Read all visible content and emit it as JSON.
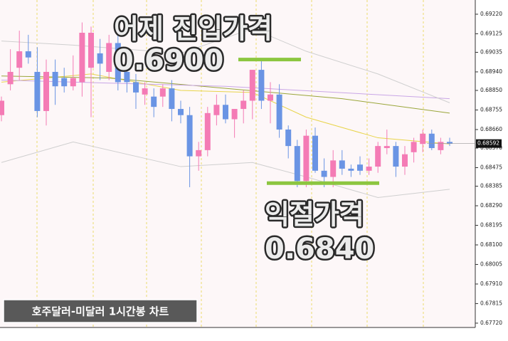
{
  "chart_data": {
    "type": "candlestick",
    "title": "호주달러-미달러 1시간봉 차트",
    "up_color": "#f47bb5",
    "down_color": "#6a94e4",
    "open": [
      0.6873,
      0.6888,
      0.6896,
      0.6904,
      0.6894,
      0.6875,
      0.6894,
      0.6891,
      0.6887,
      0.6889,
      0.6896,
      0.6903,
      0.6894,
      0.6908,
      0.6894,
      0.6889,
      0.6883,
      0.6882,
      0.6882,
      0.6886,
      0.6876,
      0.6873,
      0.6853,
      0.6856,
      0.6873,
      0.6878,
      0.6871,
      0.6876,
      0.688,
      0.6895,
      0.688,
      0.6883,
      0.6866,
      0.6858,
      0.6841,
      0.6863,
      0.6846,
      0.6843,
      0.6851,
      0.6847,
      0.6849,
      0.6846,
      0.6848,
      0.6857,
      0.6858,
      0.6848,
      0.6855,
      0.6859,
      0.6864,
      0.6856,
      0.686
    ],
    "high": [
      0.6882,
      0.6905,
      0.6914,
      0.6912,
      0.6906,
      0.69,
      0.69,
      0.6896,
      0.6902,
      0.6918,
      0.6916,
      0.691,
      0.6912,
      0.6915,
      0.6897,
      0.6893,
      0.6889,
      0.6886,
      0.6888,
      0.689,
      0.688,
      0.6877,
      0.686,
      0.6877,
      0.6883,
      0.6883,
      0.6876,
      0.6885,
      0.6895,
      0.69,
      0.6889,
      0.6888,
      0.6868,
      0.6861,
      0.6866,
      0.6867,
      0.6852,
      0.6856,
      0.6856,
      0.6849,
      0.6853,
      0.6852,
      0.686,
      0.6866,
      0.686,
      0.6858,
      0.6862,
      0.6866,
      0.6866,
      0.6862,
      0.6862
    ],
    "low": [
      0.687,
      0.6885,
      0.689,
      0.6898,
      0.6872,
      0.6868,
      0.6878,
      0.6884,
      0.6885,
      0.6882,
      0.6872,
      0.689,
      0.689,
      0.6885,
      0.6884,
      0.6876,
      0.6878,
      0.6872,
      0.6877,
      0.687,
      0.6869,
      0.6838,
      0.6846,
      0.6853,
      0.6868,
      0.6869,
      0.6862,
      0.6869,
      0.6871,
      0.6876,
      0.6869,
      0.6862,
      0.6852,
      0.6838,
      0.6838,
      0.6845,
      0.6838,
      0.6838,
      0.6844,
      0.6843,
      0.6844,
      0.6844,
      0.6845,
      0.6854,
      0.6843,
      0.6844,
      0.685,
      0.6855,
      0.6856,
      0.6854,
      0.6858
    ],
    "close": [
      0.688,
      0.6894,
      0.6904,
      0.6901,
      0.6875,
      0.6894,
      0.6887,
      0.6887,
      0.6891,
      0.6913,
      0.6913,
      0.6898,
      0.6908,
      0.6889,
      0.6889,
      0.6884,
      0.6886,
      0.6877,
      0.6886,
      0.6876,
      0.6873,
      0.6853,
      0.6856,
      0.6874,
      0.6878,
      0.6871,
      0.6876,
      0.688,
      0.6895,
      0.688,
      0.6883,
      0.6866,
      0.6858,
      0.6841,
      0.6863,
      0.6846,
      0.6843,
      0.6851,
      0.6847,
      0.6846,
      0.6846,
      0.6848,
      0.6858,
      0.6858,
      0.6848,
      0.6854,
      0.686,
      0.6864,
      0.6857,
      0.686,
      0.68592
    ],
    "overlays": [
      {
        "color": "#e8d44a",
        "x": [
          0,
          10,
          20,
          28,
          34,
          42,
          50
        ],
        "values": [
          0.6889,
          0.6893,
          0.6885,
          0.6884,
          0.6872,
          0.6862,
          0.6859
        ]
      },
      {
        "color": "#9aa63a",
        "x": [
          0,
          12,
          25,
          38,
          50
        ],
        "values": [
          0.6892,
          0.6891,
          0.6886,
          0.6881,
          0.6874
        ]
      },
      {
        "color": "#c9a6e6",
        "x": [
          0,
          25,
          50
        ],
        "values": [
          0.689,
          0.6887,
          0.6881
        ]
      },
      {
        "color": "#cfcfcf",
        "x": [
          0,
          8,
          20,
          28,
          34,
          42,
          50
        ],
        "values": [
          0.6909,
          0.6907,
          0.6903,
          0.6915,
          0.6904,
          0.6893,
          0.6879
        ]
      },
      {
        "color": "#cfcfcf",
        "x": [
          0,
          8,
          20,
          28,
          34,
          42,
          50
        ],
        "values": [
          0.685,
          0.686,
          0.6848,
          0.685,
          0.6843,
          0.6833,
          0.6837
        ]
      }
    ],
    "last_price": {
      "value": 0.68592,
      "label": "0.68592"
    },
    "annotations": [
      {
        "text": "어제 진입가격",
        "price": {
          "value": 0.69,
          "label": "0.6900"
        }
      },
      {
        "text": "익절가격",
        "price": {
          "value": 0.684,
          "label": "0.6840"
        }
      }
    ],
    "ylim": [
      0.67699,
      0.69289
    ],
    "yticks": [
      {
        "value": 0.6922,
        "label": "0.69220"
      },
      {
        "value": 0.69125,
        "label": "0.69125"
      },
      {
        "value": 0.69035,
        "label": "0.69035"
      },
      {
        "value": 0.6894,
        "label": "0.68940"
      },
      {
        "value": 0.6885,
        "label": "0.68850"
      },
      {
        "value": 0.68755,
        "label": "0.68755"
      },
      {
        "value": 0.6866,
        "label": "0.68660"
      },
      {
        "value": 0.6857,
        "label": "0.68570"
      },
      {
        "value": 0.68475,
        "label": "0.68475"
      },
      {
        "value": 0.68385,
        "label": "0.68385"
      },
      {
        "value": 0.6829,
        "label": "0.68290"
      },
      {
        "value": 0.68195,
        "label": "0.68195"
      },
      {
        "value": 0.681,
        "label": "0.68100"
      },
      {
        "value": 0.68005,
        "label": "0.68005"
      },
      {
        "value": 0.6791,
        "label": "0.67910"
      },
      {
        "value": 0.67815,
        "label": "0.67815"
      },
      {
        "value": 0.6772,
        "label": "0.67720"
      }
    ]
  }
}
